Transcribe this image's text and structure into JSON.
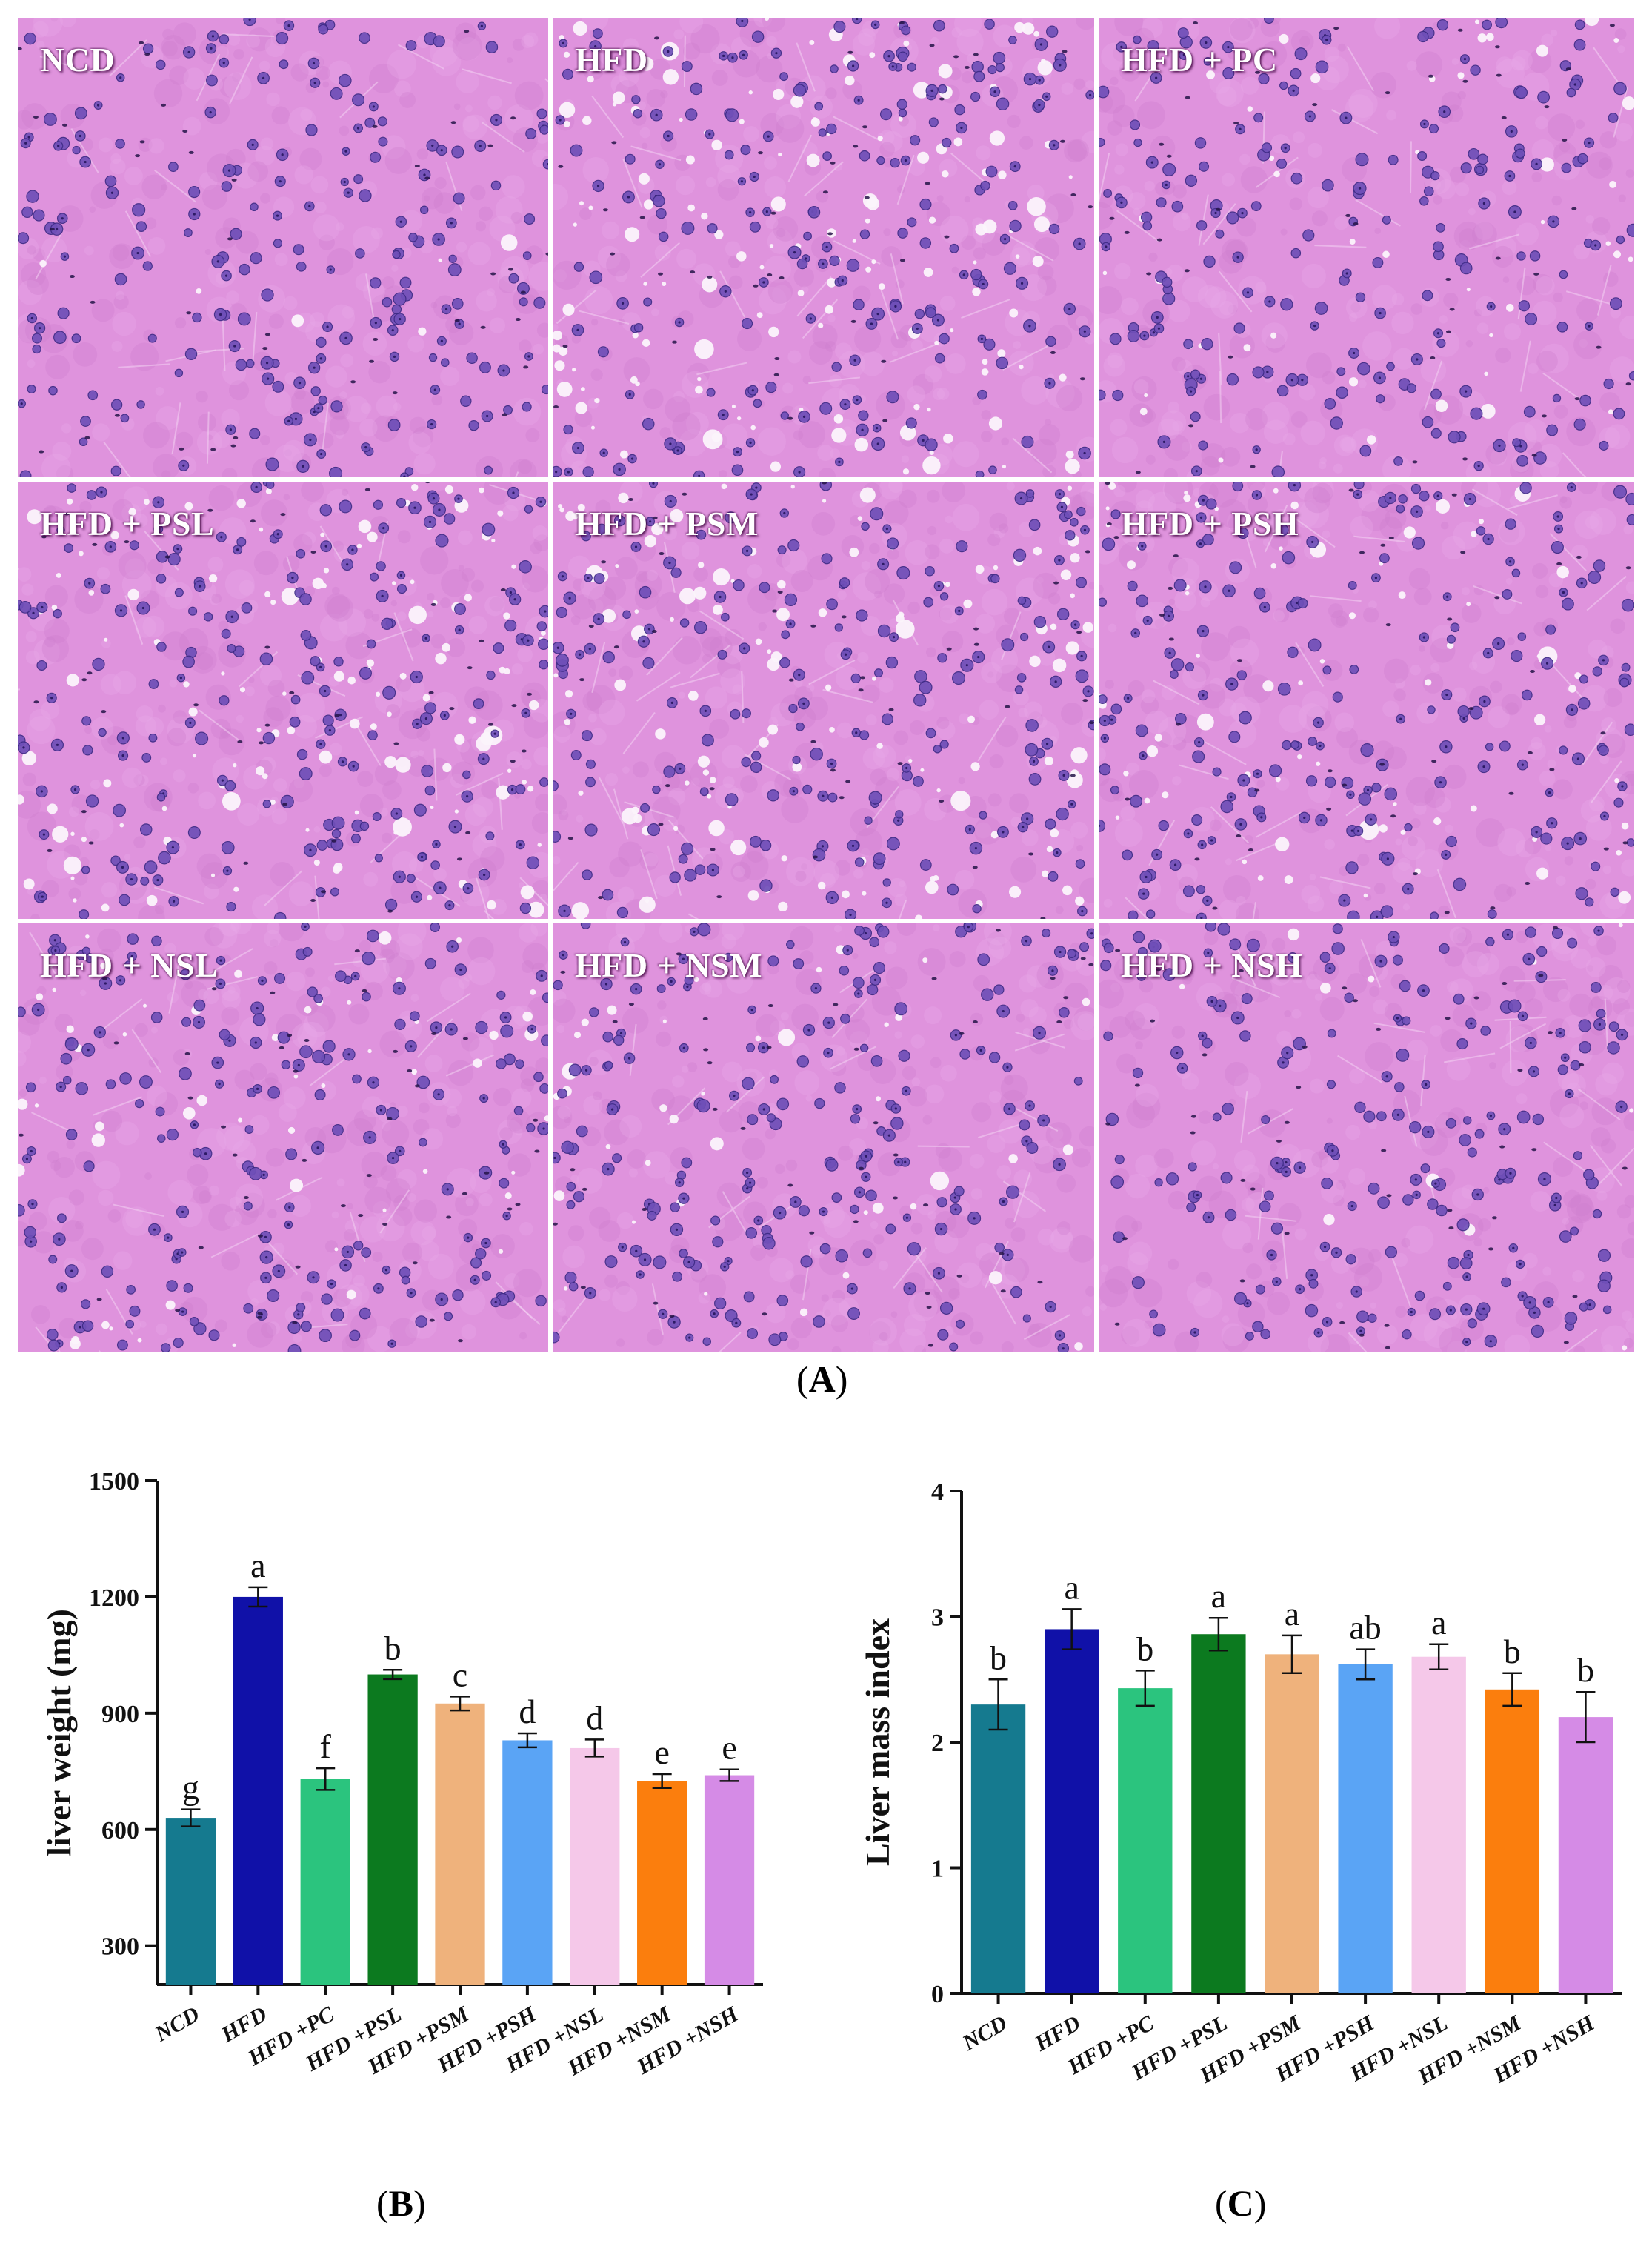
{
  "panel_a": {
    "letter": "A",
    "tiles": [
      {
        "label": "NCD",
        "vacuoles": 6,
        "seed": 11
      },
      {
        "label": "HFD",
        "vacuoles": 150,
        "seed": 23
      },
      {
        "label": "HFD + PC",
        "vacuoles": 45,
        "seed": 37
      },
      {
        "label": "HFD + PSL",
        "vacuoles": 130,
        "seed": 41
      },
      {
        "label": "HFD + PSM",
        "vacuoles": 120,
        "seed": 53
      },
      {
        "label": "HFD + PSH",
        "vacuoles": 70,
        "seed": 67
      },
      {
        "label": "HFD + NSL",
        "vacuoles": 55,
        "seed": 71
      },
      {
        "label": "HFD + NSM",
        "vacuoles": 40,
        "seed": 83
      },
      {
        "label": "HFD + NSH",
        "vacuoles": 12,
        "seed": 97
      }
    ]
  },
  "panel_b": {
    "letter": "B"
  },
  "panel_c": {
    "letter": "C"
  },
  "chart_data": [
    {
      "type": "bar",
      "categories": [
        "NCD",
        "HFD",
        "HFD +PC",
        "HFD +PSL",
        "HFD +PSM",
        "HFD +PSH",
        "HFD +NSL",
        "HFD +NSM",
        "HFD +NSH"
      ],
      "values": [
        630,
        1200,
        730,
        1000,
        925,
        830,
        810,
        725,
        740
      ],
      "errors": [
        22,
        25,
        28,
        12,
        18,
        18,
        22,
        18,
        15
      ],
      "letters": [
        "g",
        "a",
        "f",
        "b",
        "c",
        "d",
        "d",
        "e",
        "e"
      ],
      "colors": [
        "#157a8f",
        "#1011a8",
        "#2bc47e",
        "#0c7a1f",
        "#efb27c",
        "#5aa4f5",
        "#f5c8e9",
        "#fb7e0d",
        "#d58be6"
      ],
      "ylabel": "liver weight (mg)",
      "ylim": [
        200,
        1500
      ],
      "yticks": [
        300,
        600,
        900,
        1200,
        1500
      ]
    },
    {
      "type": "bar",
      "categories": [
        "NCD",
        "HFD",
        "HFD +PC",
        "HFD +PSL",
        "HFD +PSM",
        "HFD +PSH",
        "HFD +NSL",
        "HFD +NSM",
        "HFD +NSH"
      ],
      "values": [
        2.3,
        2.9,
        2.43,
        2.86,
        2.7,
        2.62,
        2.68,
        2.42,
        2.2
      ],
      "errors": [
        0.2,
        0.16,
        0.14,
        0.13,
        0.15,
        0.12,
        0.1,
        0.13,
        0.2
      ],
      "letters": [
        "b",
        "a",
        "b",
        "a",
        "a",
        "ab",
        "a",
        "b",
        "b"
      ],
      "colors": [
        "#157a8f",
        "#1011a8",
        "#2bc47e",
        "#0c7a1f",
        "#efb27c",
        "#5aa4f5",
        "#f5c8e9",
        "#fb7e0d",
        "#d58be6"
      ],
      "ylabel": "Liver mass index",
      "ylim": [
        0,
        4
      ],
      "yticks": [
        0,
        1,
        2,
        3,
        4
      ]
    }
  ]
}
